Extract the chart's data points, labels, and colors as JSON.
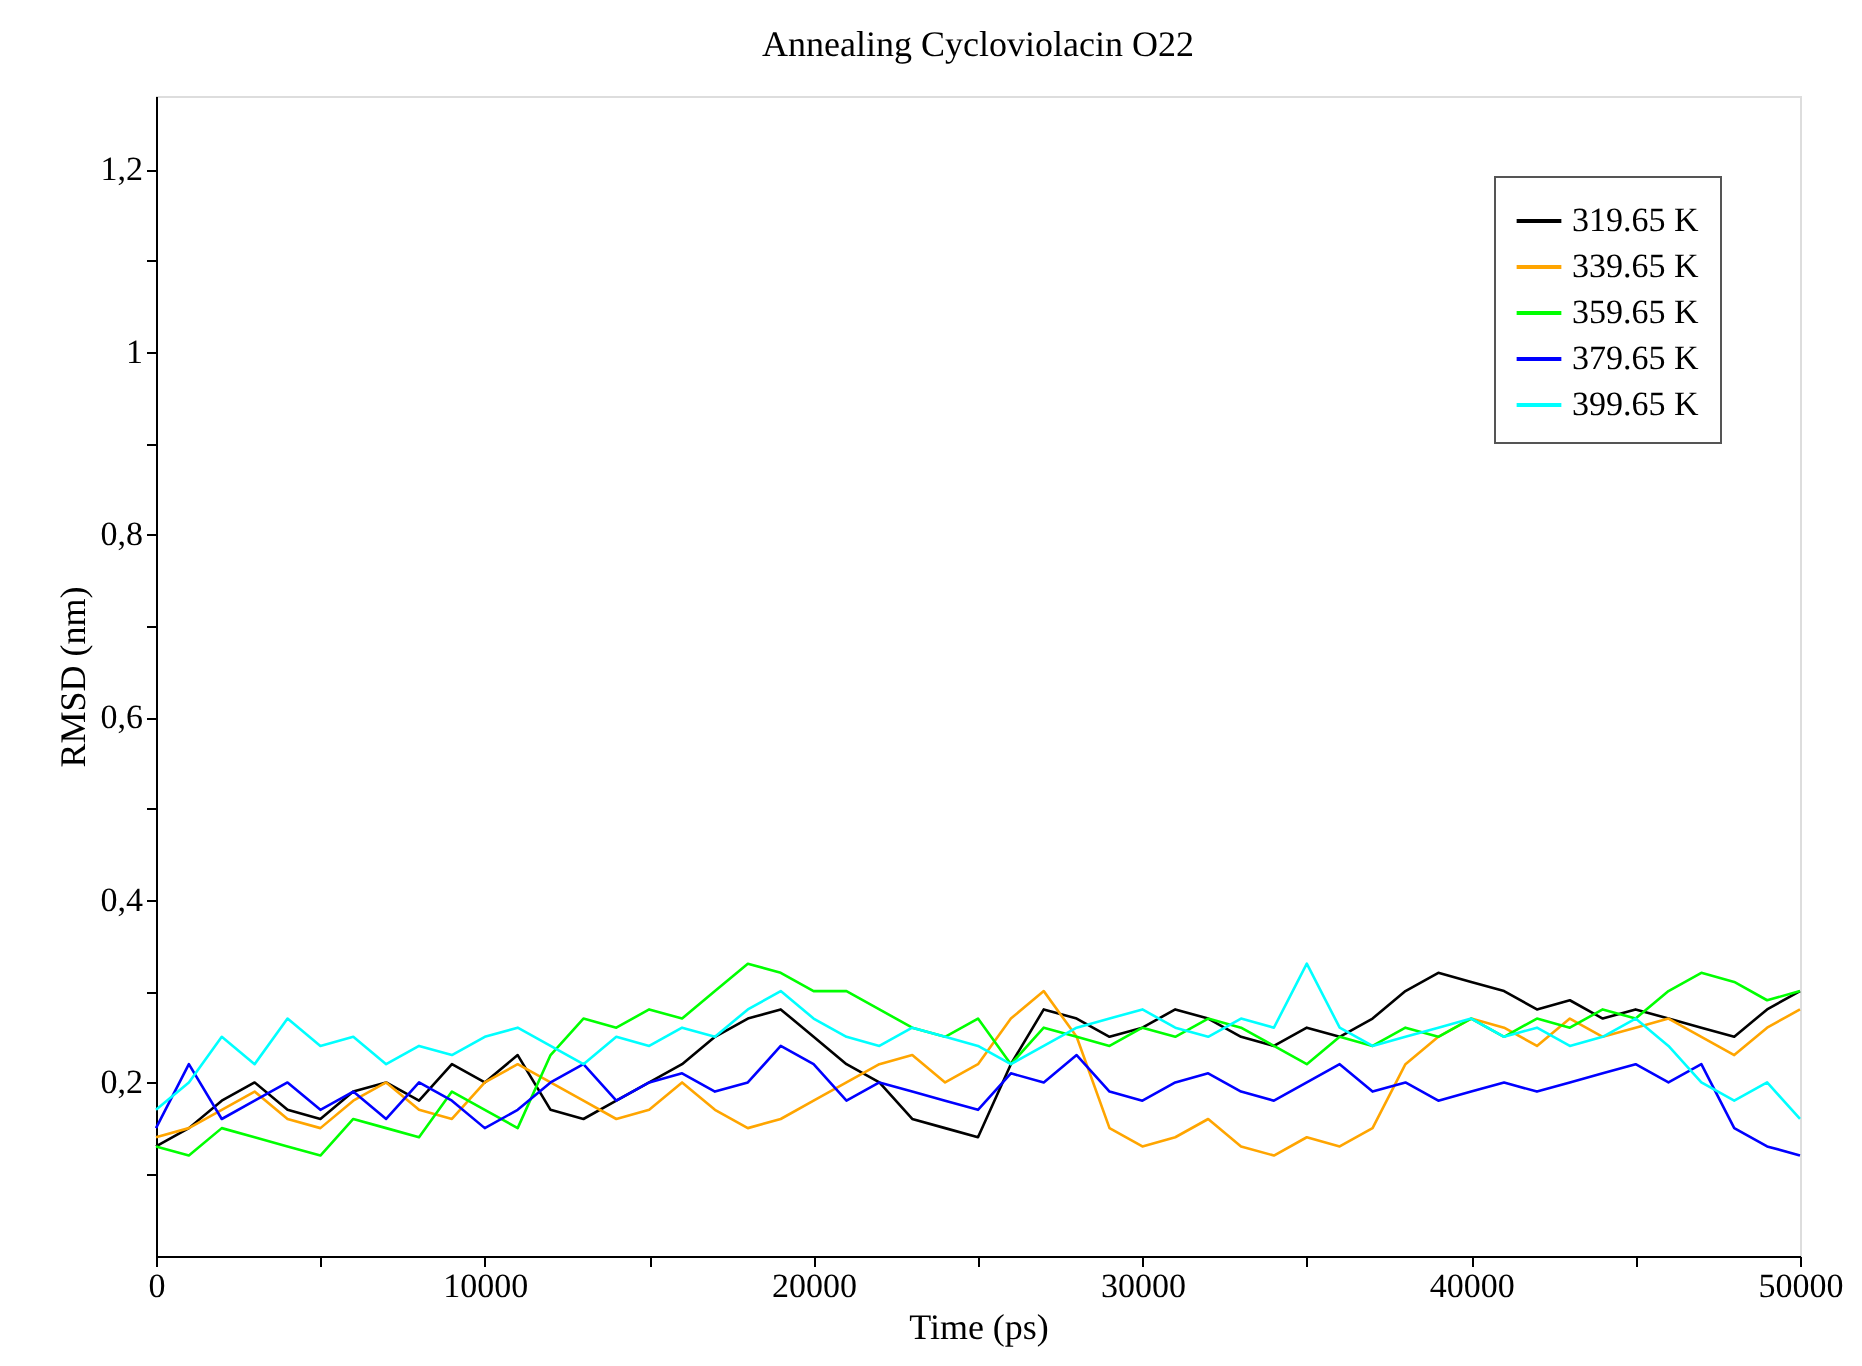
{
  "chart_data": {
    "type": "line",
    "title": "Annealing Cycloviolacin O22",
    "xlabel": "Time (ps)",
    "ylabel": "RMSD (nm)",
    "x": [
      0,
      1000,
      2000,
      3000,
      4000,
      5000,
      6000,
      7000,
      8000,
      9000,
      10000,
      11000,
      12000,
      13000,
      14000,
      15000,
      16000,
      17000,
      18000,
      19000,
      20000,
      21000,
      22000,
      23000,
      24000,
      25000,
      26000,
      27000,
      28000,
      29000,
      30000,
      31000,
      32000,
      33000,
      34000,
      35000,
      36000,
      37000,
      38000,
      39000,
      40000,
      41000,
      42000,
      43000,
      44000,
      45000,
      46000,
      47000,
      48000,
      49000,
      50000
    ],
    "series": [
      {
        "name": "319.65 K",
        "color": "#000000",
        "values": [
          0.13,
          0.15,
          0.18,
          0.2,
          0.17,
          0.16,
          0.19,
          0.2,
          0.18,
          0.22,
          0.2,
          0.23,
          0.17,
          0.16,
          0.18,
          0.2,
          0.22,
          0.25,
          0.27,
          0.28,
          0.25,
          0.22,
          0.2,
          0.16,
          0.15,
          0.14,
          0.22,
          0.28,
          0.27,
          0.25,
          0.26,
          0.28,
          0.27,
          0.25,
          0.24,
          0.26,
          0.25,
          0.27,
          0.3,
          0.32,
          0.31,
          0.3,
          0.28,
          0.29,
          0.27,
          0.28,
          0.27,
          0.26,
          0.25,
          0.28,
          0.3
        ]
      },
      {
        "name": "339.65 K",
        "color": "#ffa500",
        "values": [
          0.14,
          0.15,
          0.17,
          0.19,
          0.16,
          0.15,
          0.18,
          0.2,
          0.17,
          0.16,
          0.2,
          0.22,
          0.2,
          0.18,
          0.16,
          0.17,
          0.2,
          0.17,
          0.15,
          0.16,
          0.18,
          0.2,
          0.22,
          0.23,
          0.2,
          0.22,
          0.27,
          0.3,
          0.25,
          0.15,
          0.13,
          0.14,
          0.16,
          0.13,
          0.12,
          0.14,
          0.13,
          0.15,
          0.22,
          0.25,
          0.27,
          0.26,
          0.24,
          0.27,
          0.25,
          0.26,
          0.27,
          0.25,
          0.23,
          0.26,
          0.28
        ]
      },
      {
        "name": "359.65 K",
        "color": "#00ff00",
        "values": [
          0.13,
          0.12,
          0.15,
          0.14,
          0.13,
          0.12,
          0.16,
          0.15,
          0.14,
          0.19,
          0.17,
          0.15,
          0.23,
          0.27,
          0.26,
          0.28,
          0.27,
          0.3,
          0.33,
          0.32,
          0.3,
          0.3,
          0.28,
          0.26,
          0.25,
          0.27,
          0.22,
          0.26,
          0.25,
          0.24,
          0.26,
          0.25,
          0.27,
          0.26,
          0.24,
          0.22,
          0.25,
          0.24,
          0.26,
          0.25,
          0.27,
          0.25,
          0.27,
          0.26,
          0.28,
          0.27,
          0.3,
          0.32,
          0.31,
          0.29,
          0.3
        ]
      },
      {
        "name": "379.65 K",
        "color": "#0000ff",
        "values": [
          0.15,
          0.22,
          0.16,
          0.18,
          0.2,
          0.17,
          0.19,
          0.16,
          0.2,
          0.18,
          0.15,
          0.17,
          0.2,
          0.22,
          0.18,
          0.2,
          0.21,
          0.19,
          0.2,
          0.24,
          0.22,
          0.18,
          0.2,
          0.19,
          0.18,
          0.17,
          0.21,
          0.2,
          0.23,
          0.19,
          0.18,
          0.2,
          0.21,
          0.19,
          0.18,
          0.2,
          0.22,
          0.19,
          0.2,
          0.18,
          0.19,
          0.2,
          0.19,
          0.2,
          0.21,
          0.22,
          0.2,
          0.22,
          0.15,
          0.13,
          0.12
        ]
      },
      {
        "name": "399.65 K",
        "color": "#00ffff",
        "values": [
          0.17,
          0.2,
          0.25,
          0.22,
          0.27,
          0.24,
          0.25,
          0.22,
          0.24,
          0.23,
          0.25,
          0.26,
          0.24,
          0.22,
          0.25,
          0.24,
          0.26,
          0.25,
          0.28,
          0.3,
          0.27,
          0.25,
          0.24,
          0.26,
          0.25,
          0.24,
          0.22,
          0.24,
          0.26,
          0.27,
          0.28,
          0.26,
          0.25,
          0.27,
          0.26,
          0.33,
          0.26,
          0.24,
          0.25,
          0.26,
          0.27,
          0.25,
          0.26,
          0.24,
          0.25,
          0.27,
          0.24,
          0.2,
          0.18,
          0.2,
          0.16
        ]
      }
    ],
    "xlim": [
      0,
      50000
    ],
    "xticks": [
      0,
      {
        "value": 5000,
        "label": null
      },
      10000,
      {
        "value": 15000,
        "label": null
      },
      20000,
      {
        "value": 25000,
        "label": null
      },
      30000,
      {
        "value": 35000,
        "label": null
      },
      40000,
      {
        "value": 45000,
        "label": null
      },
      50000
    ],
    "ylim": [
      0.01,
      1.28
    ],
    "yticks": [
      {
        "value": 0.1,
        "label": null
      },
      {
        "value": 0.2,
        "label": "0,2"
      },
      {
        "value": 0.3,
        "label": null
      },
      {
        "value": 0.4,
        "label": "0,4"
      },
      {
        "value": 0.5,
        "label": null
      },
      {
        "value": 0.6,
        "label": "0,6"
      },
      {
        "value": 0.7,
        "label": null
      },
      {
        "value": 0.8,
        "label": "0,8"
      },
      {
        "value": 0.9,
        "label": null
      },
      1,
      {
        "value": 1.1,
        "label": null
      },
      {
        "value": 1.2,
        "label": "1,2"
      }
    ],
    "grid": false,
    "legend": "top right",
    "marker": "none",
    "line_style": "solid"
  }
}
